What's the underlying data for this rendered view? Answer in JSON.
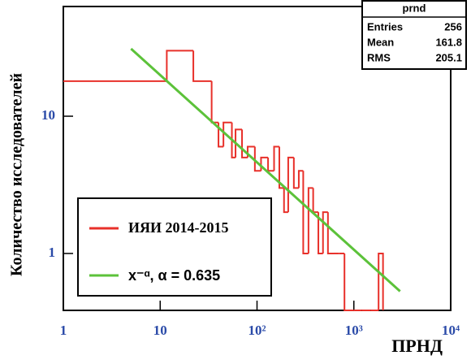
{
  "chart_data": {
    "type": "histogram",
    "series_name": "ИЯИ 2014-2015",
    "color": "#e8302a",
    "bins": [
      1,
      11.7,
      22,
      34,
      40,
      45,
      55,
      60,
      70,
      80,
      95,
      110,
      130,
      150,
      170,
      190,
      210,
      240,
      270,
      300,
      340,
      380,
      430,
      480,
      540,
      620,
      700,
      800,
      1000,
      1200,
      1500,
      1800,
      2000
    ],
    "counts": [
      18,
      30,
      18,
      9,
      6,
      9,
      5,
      8,
      5,
      6,
      4,
      5,
      4,
      6,
      3,
      2,
      5,
      3,
      4,
      1,
      3,
      2,
      1,
      2,
      1,
      1,
      1,
      0,
      0,
      0,
      0,
      1
    ],
    "fit": {
      "name": "x⁻ᵅ, α = 0.635",
      "color": "#5cc23a",
      "x": [
        5,
        3000
      ],
      "values": [
        31,
        0.53
      ]
    },
    "xlim": [
      1,
      10000
    ],
    "ylim": [
      0.385,
      63
    ],
    "log_x": true,
    "log_y": true,
    "xticks": [
      1,
      10,
      {
        "value": 100,
        "label": "10²"
      },
      {
        "value": 1000,
        "label": "10³"
      },
      {
        "value": 10000,
        "label": "10⁴"
      }
    ],
    "yticks": [
      1,
      10
    ],
    "xlabel": "ПРНД",
    "ylabel": "Количество исследователей",
    "stats": {
      "title": "prnd",
      "rows": [
        [
          "Entries",
          256
        ],
        [
          "Mean",
          161.8
        ],
        [
          "RMS",
          205.1
        ]
      ]
    }
  }
}
